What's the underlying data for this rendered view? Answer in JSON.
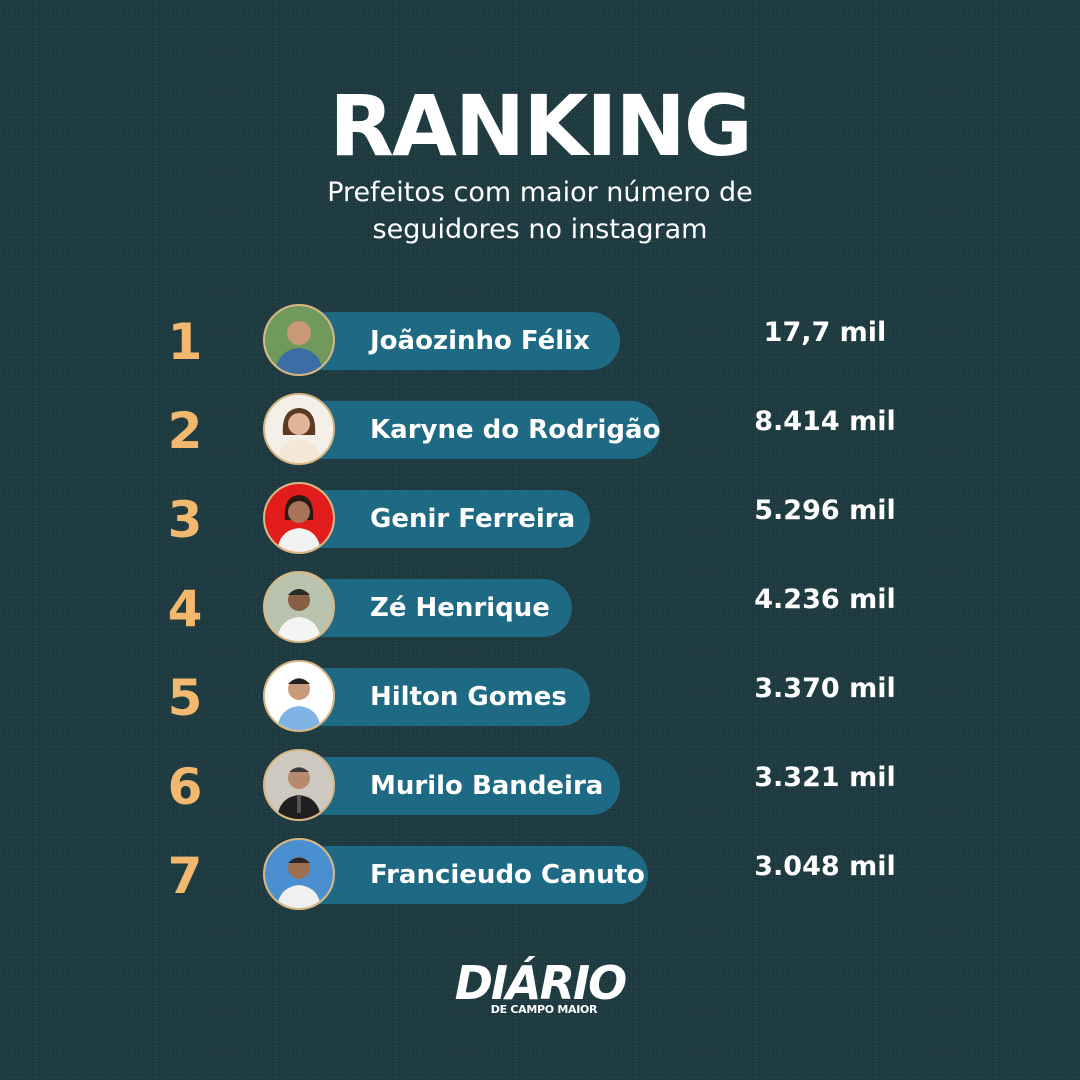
{
  "header": {
    "title": "RANKING",
    "subtitle_line1": "Prefeitos com maior número de",
    "subtitle_line2": "seguidores no instagram"
  },
  "ranking": [
    {
      "rank": "1",
      "name": "Joãozinho Félix",
      "followers": "17,7 mil",
      "photo_bg": "#6f9a5b"
    },
    {
      "rank": "2",
      "name": "Karyne do Rodrigão",
      "followers": "8.414 mil",
      "photo_bg": "#f4efe9"
    },
    {
      "rank": "3",
      "name": "Genir Ferreira",
      "followers": "5.296 mil",
      "photo_bg": "#e21b1b"
    },
    {
      "rank": "4",
      "name": "Zé Henrique",
      "followers": "4.236 mil",
      "photo_bg": "#b9c3ad"
    },
    {
      "rank": "5",
      "name": "Hilton Gomes",
      "followers": "3.370 mil",
      "photo_bg": "#ffffff"
    },
    {
      "rank": "6",
      "name": "Murilo Bandeira",
      "followers": "3.321 mil",
      "photo_bg": "#cdc8c0"
    },
    {
      "rank": "7",
      "name": "Francieudo Canuto",
      "followers": "3.048 mil",
      "photo_bg": "#4a8fd0"
    }
  ],
  "logo": {
    "main": "DIÁRIO",
    "sub": "DE CAMPO MAIOR"
  },
  "colors": {
    "background": "#1d3a40",
    "pill": "#1e6a84",
    "rank_number": "#f2b86e",
    "avatar_border": "#d9b680"
  }
}
